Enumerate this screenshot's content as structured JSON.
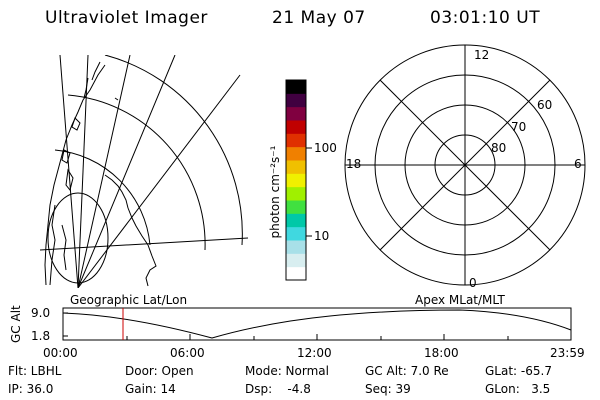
{
  "header": {
    "instrument": "Ultraviolet Imager",
    "date": "21 May 07",
    "time": "03:01:10 UT"
  },
  "colorbar": {
    "unit_label": "photon cm⁻²s⁻¹",
    "ticks": [
      "100",
      "10"
    ],
    "scale": "log",
    "colors": [
      "#ffffff",
      "#d8eef0",
      "#a8e0e8",
      "#40d8e0",
      "#00c8a8",
      "#40e040",
      "#a0f000",
      "#f0f000",
      "#f0c000",
      "#f08000",
      "#e03000",
      "#c00000",
      "#800040",
      "#400040",
      "#000000"
    ]
  },
  "left_map": {
    "title": "Geographic Lat/Lon"
  },
  "right_map": {
    "title": "Apex MLat/MLT",
    "lat_labels": [
      "60",
      "70",
      "80"
    ],
    "mlt_labels": {
      "top": "12",
      "left": "18",
      "right": "6",
      "bottom": "0"
    }
  },
  "altitude_plot": {
    "ylabel": "GC Alt",
    "yticks": [
      "9.0",
      "1.8"
    ],
    "xticks": [
      "00:00",
      "06:00",
      "12:00",
      "18:00",
      "23:59"
    ],
    "marker_time": "03:01",
    "marker_color": "#cc0000"
  },
  "info": {
    "flt": "Flt: LBHL",
    "ip": "IP: 36.0",
    "door": "Door: Open",
    "gain": "Gain: 14",
    "mode": "Mode: Normal",
    "dsp": "Dsp:    -4.8",
    "gcalt": "GC Alt: 7.0 Re",
    "seq": "Seq: 39",
    "glat": "GLat: -65.7",
    "glon": "GLon:   3.5"
  }
}
